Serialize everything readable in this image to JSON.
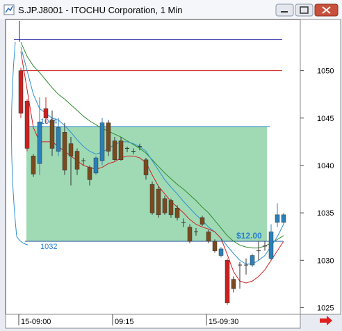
{
  "window_title": "S.JP.J8001 - ITOCHU Corporation, 1 Min",
  "chart_data": {
    "type": "candlestick",
    "categories": [
      "15-09:00",
      null,
      null,
      null,
      null,
      null,
      null,
      null,
      null,
      null,
      null,
      null,
      null,
      null,
      null,
      "09:15",
      null,
      null,
      null,
      null,
      null,
      null,
      null,
      null,
      null,
      null,
      null,
      null,
      null,
      null,
      "15-09:30",
      null,
      null,
      null,
      null,
      null,
      null,
      null,
      null,
      null,
      null,
      null,
      null
    ],
    "candles": {
      "open": [
        1050,
        1046.8,
        1041,
        1040.2,
        1046,
        1044.8,
        1041.5,
        1043.5,
        1042.3,
        1041.5,
        1040.5,
        1039.8,
        1039.2,
        1040.5,
        1044.5,
        1042.6,
        1042.6,
        1041.8,
        1041.5,
        1042,
        1040.6,
        1038,
        1037.5,
        1036.5,
        1036.3,
        1035.5,
        1034,
        1033.5,
        1033,
        1034.5,
        1033,
        1032,
        1030.5,
        1030,
        1028,
        1029.5,
        1029.5,
        1029.5,
        1031,
        1031.5,
        1030.2,
        1034,
        1034
      ],
      "high": [
        1050.3,
        1047,
        1041.2,
        1047.2,
        1047.2,
        1045.8,
        1045,
        1044.5,
        1043,
        1041.8,
        1040.8,
        1040,
        1041,
        1045,
        1044.8,
        1043,
        1043,
        1042,
        1041.8,
        1042.3,
        1040.8,
        1038.3,
        1037.8,
        1036.8,
        1036.5,
        1035.8,
        1034.4,
        1033.8,
        1033.4,
        1034.7,
        1033.2,
        1032.2,
        1031.4,
        1030.2,
        1028.3,
        1029.8,
        1030.2,
        1030.7,
        1032,
        1032,
        1033.8,
        1036,
        1035
      ],
      "low": [
        1045,
        1041.5,
        1038.8,
        1039,
        1044.4,
        1041,
        1041,
        1039,
        1037.9,
        1039,
        1040,
        1037.9,
        1039,
        1040,
        1041,
        1040.5,
        1040.5,
        1041.4,
        1041.2,
        1041.6,
        1038.5,
        1034.8,
        1034.5,
        1034.8,
        1034.5,
        1034.2,
        1033.5,
        1031.8,
        1032.6,
        1033.6,
        1031.8,
        1030.8,
        1030.3,
        1025.3,
        1026.6,
        1027,
        1028.5,
        1029.3,
        1030,
        1031,
        1030,
        1033.5,
        1033.8
      ],
      "close": [
        1045.5,
        1041.8,
        1039.1,
        1044.6,
        1045,
        1041.8,
        1044,
        1039.5,
        1041,
        1039.6,
        1040.5,
        1038.5,
        1040.8,
        1044.5,
        1041.5,
        1040.6,
        1040.6,
        1041.8,
        1041.5,
        1042,
        1039,
        1035,
        1034.8,
        1035,
        1034.8,
        1034.5,
        1034,
        1032,
        1033,
        1033.8,
        1032,
        1031,
        1031.2,
        1025.5,
        1027,
        1029.5,
        1029.5,
        1030.5,
        1031,
        1031.5,
        1033,
        1034.8,
        1034.8
      ],
      "colors": [
        "#cc2020",
        "#cc2020",
        "#7a4a1e",
        "#2a80b9",
        "#cc2020",
        "#7a4a1e",
        "#2a80b9",
        "#7a4a1e",
        "#7a4a1e",
        "#7a4a1e",
        "#7a4a1e",
        "#7a4a1e",
        "#2a80b9",
        "#2a80b9",
        "#7a4a1e",
        "#7a4a1e",
        "#7a4a1e",
        "#7a4a1e",
        "#7a4a1e",
        "#7a4a1e",
        "#7a4a1e",
        "#7a4a1e",
        "#7a4a1e",
        "#7a4a1e",
        "#7a4a1e",
        "#7a4a1e",
        "#7a4a1e",
        "#7a4a1e",
        "#7a4a1e",
        "#7a4a1e",
        "#7a4a1e",
        "#7a4a1e",
        "#2a80b9",
        "#cc2020",
        "#7a4a1e",
        "#7a4a1e",
        "#7a4a1e",
        "#2a80b9",
        "#7a4a1e",
        "#7a4a1e",
        "#2a80b9",
        "#2a80b9",
        "#2a80b9"
      ]
    },
    "lines": [
      {
        "color": "#2e8b2e",
        "values": [
          1053,
          1051.5,
          1050.5,
          1049.8,
          1049,
          1048.2,
          1047.5,
          1047,
          1046.4,
          1045.8,
          1045.2,
          1044.7,
          1044.3,
          1043.9,
          1043.6,
          1043.3,
          1043,
          1042.6,
          1042.2,
          1041.8,
          1041.3,
          1040.6,
          1039.9,
          1039.2,
          1038.6,
          1038,
          1037.5,
          1036.9,
          1036.3,
          1035.6,
          1035,
          1034.2,
          1033.4,
          1032.6,
          1032,
          1031.6,
          1031.4,
          1031.3,
          1031.3,
          1031.5,
          1031.8,
          1032.2,
          1032.6
        ]
      },
      {
        "color": "#2a90d0",
        "values": [
          1052.5,
          1050,
          1047.5,
          1046,
          1045.5,
          1045,
          1044.8,
          1044.2,
          1043.5,
          1042.7,
          1042,
          1041.5,
          1041.2,
          1041.4,
          1041.8,
          1042.2,
          1042.5,
          1042.5,
          1042.3,
          1042,
          1041.5,
          1040.5,
          1039.5,
          1038.5,
          1037.7,
          1037,
          1036.2,
          1035.5,
          1034.8,
          1034.2,
          1033.5,
          1033,
          1032.3,
          1031.5,
          1030.7,
          1030,
          1029.6,
          1029.6,
          1030,
          1030.5,
          1031.5,
          1032.5,
          1033.8
        ]
      },
      {
        "color": "#cc2020",
        "values": [
          1052,
          1048,
          1044,
          1042.5,
          1042.5,
          1042.5,
          1042,
          1041.5,
          1041,
          1040.5,
          1040,
          1039.8,
          1039.6,
          1039.8,
          1040.2,
          1040.4,
          1040.8,
          1041,
          1041,
          1040.8,
          1040.3,
          1039,
          1037.8,
          1037,
          1036.2,
          1035.6,
          1035,
          1034.3,
          1033.8,
          1033.5,
          1033.3,
          1033,
          1032.3,
          1030.6,
          1028.8,
          1027.8,
          1027.6,
          1027.8,
          1028.3,
          1029,
          1030,
          1031,
          1032
        ]
      }
    ],
    "levels": [
      {
        "value": 1053.3,
        "color": "#1a1a9a"
      },
      {
        "value": 1050,
        "color": "#cc1010"
      }
    ],
    "range_box": {
      "low": 1032,
      "high": 1044.1,
      "color": "#8fd4a8",
      "low_label": "1032",
      "high_label": "1044",
      "amount_label": "$12.00"
    },
    "ylim": [
      1024.3,
      1055.4
    ],
    "yticks": [
      1025,
      1030,
      1035,
      1040,
      1045,
      1050
    ]
  }
}
